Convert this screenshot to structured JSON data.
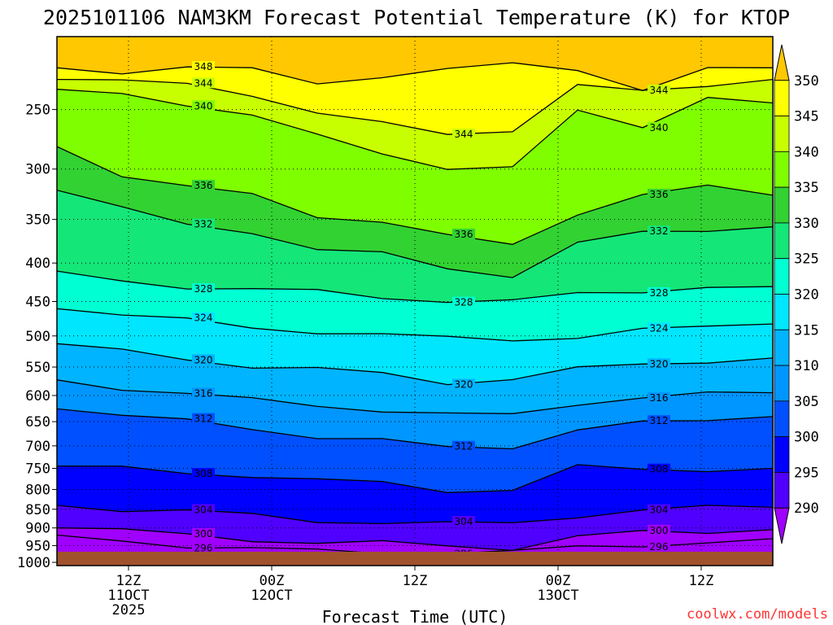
{
  "chart_data": {
    "type": "heatmap",
    "title": "2025101106 NAM3KM Forecast Potential Temperature (K) for KTOP",
    "xlabel": "Forecast Time (UTC)",
    "ylabel": "",
    "credit": "coolwx.com/models",
    "y_scale": "log",
    "ylim": [
      1010,
      200
    ],
    "y_ticks": [
      "250",
      "300",
      "350",
      "400",
      "450",
      "500",
      "550",
      "600",
      "650",
      "700",
      "750",
      "800",
      "850",
      "900",
      "950",
      "1000"
    ],
    "x_ticks": [
      {
        "time": "12Z",
        "date": "11OCT",
        "year": "2025"
      },
      {
        "time": "00Z",
        "date": "12OCT",
        "year": ""
      },
      {
        "time": "12Z",
        "date": "",
        "year": ""
      },
      {
        "time": "00Z",
        "date": "13OCT",
        "year": ""
      },
      {
        "time": "12Z",
        "date": "",
        "year": ""
      }
    ],
    "colorbar_labels": [
      "350",
      "345",
      "340",
      "335",
      "330",
      "325",
      "320",
      "315",
      "310",
      "305",
      "300",
      "295",
      "290"
    ],
    "colorbar_colors": [
      "#ffc800",
      "#ffff00",
      "#c8ff00",
      "#7ffe00",
      "#32d232",
      "#14e678",
      "#00ffd2",
      "#00e6ff",
      "#00b4ff",
      "#0096ff",
      "#0050ff",
      "#0000ff",
      "#5000ff",
      "#a000ff"
    ],
    "ground_color": "#a0522d",
    "contours": [
      {
        "label": "348",
        "pressure": [
          220,
          222,
          220,
          222,
          230,
          225,
          222,
          218,
          220,
          235,
          222,
          220
        ]
      },
      {
        "label": "344",
        "pressure": [
          228,
          230,
          232,
          238,
          252,
          262,
          270,
          265,
          232,
          238,
          232,
          228
        ]
      },
      {
        "label": "340",
        "pressure": [
          235,
          238,
          245,
          255,
          272,
          285,
          298,
          300,
          252,
          262,
          240,
          245
        ]
      },
      {
        "label": "336",
        "pressure": [
          280,
          305,
          318,
          325,
          345,
          352,
          370,
          378,
          342,
          325,
          318,
          325
        ]
      },
      {
        "label": "332",
        "pressure": [
          320,
          340,
          355,
          362,
          385,
          390,
          405,
          415,
          378,
          365,
          360,
          358
        ]
      },
      {
        "label": "328",
        "pressure": [
          410,
          420,
          430,
          436,
          436,
          442,
          450,
          452,
          438,
          434,
          432,
          430
        ]
      },
      {
        "label": "324",
        "pressure": [
          460,
          468,
          478,
          488,
          492,
          498,
          505,
          505,
          500,
          492,
          488,
          482
        ]
      },
      {
        "label": "320",
        "pressure": [
          512,
          525,
          535,
          548,
          555,
          562,
          575,
          570,
          555,
          545,
          538,
          535
        ]
      },
      {
        "label": "316",
        "pressure": [
          572,
          585,
          595,
          610,
          620,
          625,
          635,
          640,
          615,
          600,
          598,
          595
        ]
      },
      {
        "label": "312",
        "pressure": [
          625,
          640,
          650,
          662,
          680,
          690,
          705,
          700,
          665,
          655,
          648,
          640
        ]
      },
      {
        "label": "308",
        "pressure": [
          745,
          748,
          755,
          770,
          782,
          780,
          800,
          805,
          748,
          748,
          752,
          750
        ]
      },
      {
        "label": "304",
        "pressure": [
          840,
          848,
          855,
          868,
          880,
          882,
          890,
          890,
          865,
          850,
          848,
          845
        ]
      },
      {
        "label": "300",
        "pressure": [
          900,
          910,
          920,
          930,
          942,
          945,
          950,
          955,
          925,
          915,
          910,
          905
        ]
      },
      {
        "label": "296",
        "pressure": [
          920,
          935,
          948,
          960,
          968,
          968,
          968,
          972,
          955,
          945,
          940,
          930
        ]
      }
    ]
  }
}
